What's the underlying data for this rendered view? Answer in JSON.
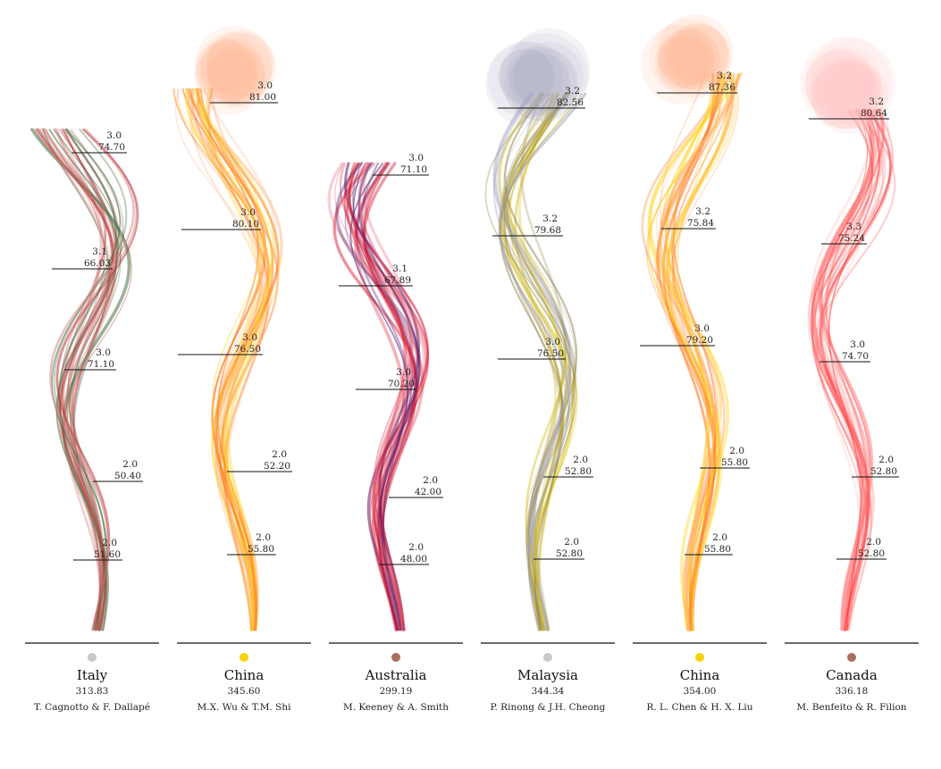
{
  "chart_data": {
    "type": "other",
    "description_of_marks": "six dive-trail ribbons",
    "columns": [
      {
        "country": "Italy",
        "total": "313.83",
        "divers": "T. Cagnotto & F. Dallapé",
        "dot_color": "#c8c8c8",
        "palette": [
          "#b83a3a",
          "#3f6e3f",
          "#d98080"
        ],
        "dives": [
          {
            "difficulty": "3.0",
            "score": "74.70"
          },
          {
            "difficulty": "3.1",
            "score": "66.03"
          },
          {
            "difficulty": "3.0",
            "score": "71.10"
          },
          {
            "difficulty": "2.0",
            "score": "50.40"
          },
          {
            "difficulty": "2.0",
            "score": "51.60"
          }
        ]
      },
      {
        "country": "China",
        "total": "345.60",
        "divers": "M.X. Wu & T.M. Shi",
        "dot_color": "#f2d40a",
        "palette": [
          "#ff7a1a",
          "#ffd21a",
          "#ffb080"
        ],
        "dives": [
          {
            "difficulty": "3.0",
            "score": "81.00"
          },
          {
            "difficulty": "3.0",
            "score": "80.10"
          },
          {
            "difficulty": "3.0",
            "score": "76.50"
          },
          {
            "difficulty": "2.0",
            "score": "52.20"
          },
          {
            "difficulty": "2.0",
            "score": "55.80"
          }
        ]
      },
      {
        "country": "Australia",
        "total": "299.19",
        "divers": "M. Keeney & A. Smith",
        "dot_color": "#a8705f",
        "palette": [
          "#d8102a",
          "#5a1f6e",
          "#e86a7a"
        ],
        "dives": [
          {
            "difficulty": "3.0",
            "score": "71.10"
          },
          {
            "difficulty": "3.1",
            "score": "67.89"
          },
          {
            "difficulty": "3.0",
            "score": "70.20"
          },
          {
            "difficulty": "2.0",
            "score": "42.00"
          },
          {
            "difficulty": "2.0",
            "score": "48.00"
          }
        ]
      },
      {
        "country": "Malaysia",
        "total": "344.34",
        "divers": "P. Rinong & J.H. Cheong",
        "dot_color": "#c8c8c8",
        "palette": [
          "#8a7a3a",
          "#d8c21a",
          "#a8a8c0"
        ],
        "dives": [
          {
            "difficulty": "3.2",
            "score": "82.56"
          },
          {
            "difficulty": "3.2",
            "score": "79.68"
          },
          {
            "difficulty": "3.0",
            "score": "76.50"
          },
          {
            "difficulty": "2.0",
            "score": "52.80"
          },
          {
            "difficulty": "2.0",
            "score": "52.80"
          }
        ]
      },
      {
        "country": "China",
        "total": "354.00",
        "divers": "R. L. Chen & H. X. Liu",
        "dot_color": "#f2d40a",
        "palette": [
          "#ff7a1a",
          "#ffd21a",
          "#ffb080"
        ],
        "dives": [
          {
            "difficulty": "3.2",
            "score": "87.36"
          },
          {
            "difficulty": "3.2",
            "score": "75.84"
          },
          {
            "difficulty": "3.0",
            "score": "79.20"
          },
          {
            "difficulty": "2.0",
            "score": "55.80"
          },
          {
            "difficulty": "2.0",
            "score": "55.80"
          }
        ]
      },
      {
        "country": "Canada",
        "total": "336.18",
        "divers": "M. Benfeito & R. Filion",
        "dot_color": "#a8705f",
        "palette": [
          "#ff3a3a",
          "#ff8080",
          "#ffc0c0"
        ],
        "dives": [
          {
            "difficulty": "3.2",
            "score": "80.64"
          },
          {
            "difficulty": "3.3",
            "score": "75.24"
          },
          {
            "difficulty": "3.0",
            "score": "74.70"
          },
          {
            "difficulty": "2.0",
            "score": "52.80"
          },
          {
            "difficulty": "2.0",
            "score": "52.80"
          }
        ]
      }
    ]
  }
}
